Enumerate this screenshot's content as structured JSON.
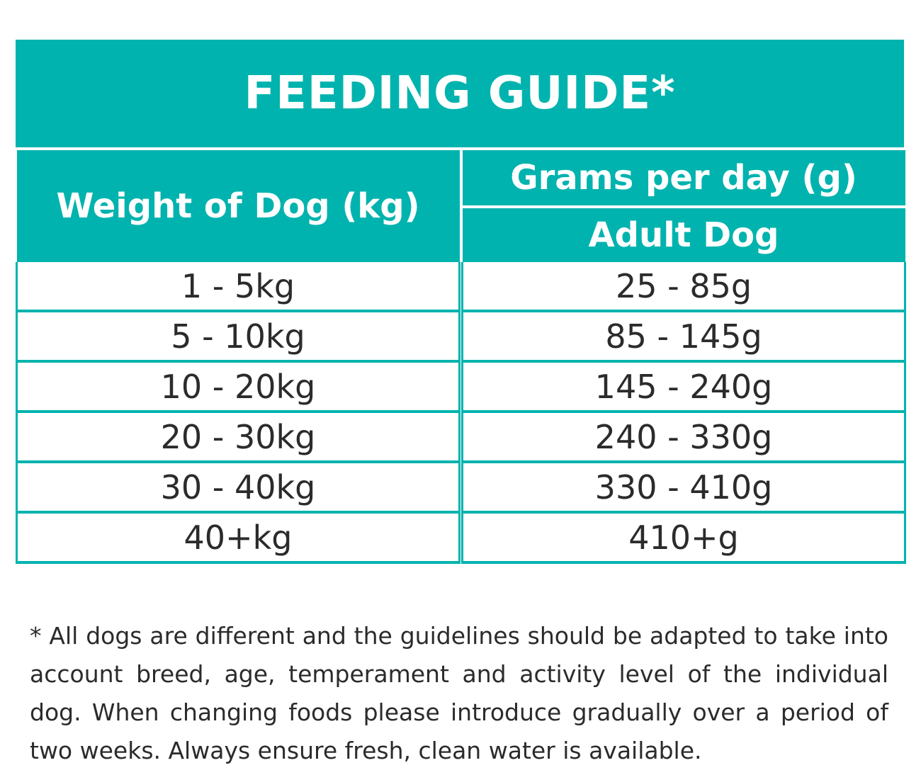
{
  "guide": {
    "title": "FEEDING GUIDE*",
    "headers": {
      "weight": "Weight of Dog (kg)",
      "grams": "Grams per day (g)",
      "adult": "Adult Dog"
    },
    "rows": [
      {
        "weight": "1 - 5kg",
        "grams": "25 - 85g"
      },
      {
        "weight": "5 - 10kg",
        "grams": "85 - 145g"
      },
      {
        "weight": "10 - 20kg",
        "grams": "145 - 240g"
      },
      {
        "weight": "20 - 30kg",
        "grams": "240 - 330g"
      },
      {
        "weight": "30 - 40kg",
        "grams": "330 - 410g"
      },
      {
        "weight": "40+kg",
        "grams": "410+g"
      }
    ],
    "footnote": "* All dogs are different and the guidelines should be adapted to take into account breed, age, temperament and activity level of the individual dog. When changing foods please introduce gradually over a period of two weeks. Always ensure fresh, clean water is available.",
    "colors": {
      "accent": "#00b3ae",
      "text": "#2b2b2b"
    }
  }
}
